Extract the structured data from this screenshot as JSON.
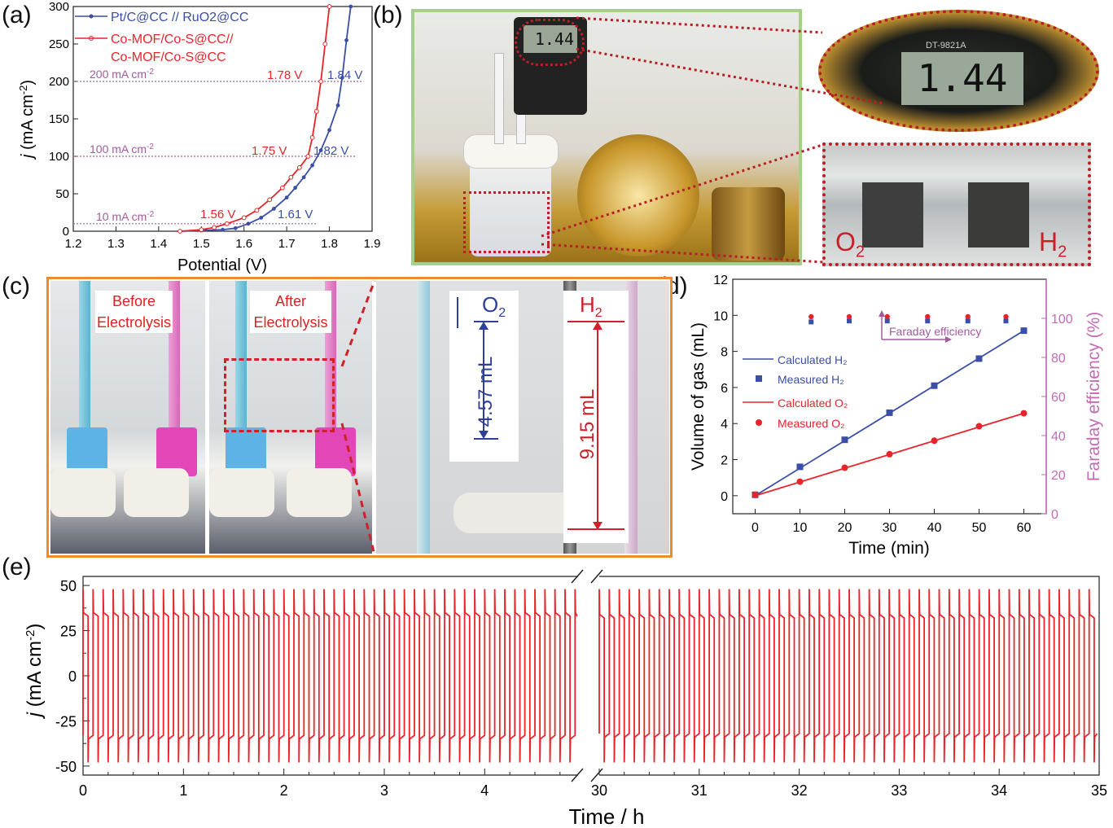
{
  "panels": {
    "a": "(a)",
    "b": "(b)",
    "c": "(c)",
    "d": "(d)",
    "e": "(e)"
  },
  "colors": {
    "red": "#e8242a",
    "blue": "#3a4fa5",
    "purple": "#a35aa0",
    "pink": "#c56ab8",
    "green_frame": "#a6cf8a",
    "orange_frame": "#ef8a2d",
    "dark_red": "#b82025"
  },
  "photo_b": {
    "meter_reading": "1.44",
    "meter_model": "DT-9821A",
    "o2_label": "O2",
    "h2_label": "H2"
  },
  "photo_c": {
    "before_label": "Before Electrolysis",
    "after_label": "After Electrolysis",
    "o2_gas": "O2",
    "h2_gas": "H2",
    "o2_volume": "4.57 mL",
    "h2_volume": "9.15 mL"
  },
  "chart_data": [
    {
      "panel": "a",
      "type": "line",
      "xlabel": "Potential (V)",
      "ylabel": "j (mA cm-2)",
      "xlim": [
        1.2,
        1.9
      ],
      "ylim": [
        0,
        300
      ],
      "xticks": [
        "1.2",
        "1.3",
        "1.4",
        "1.5",
        "1.6",
        "1.7",
        "1.8",
        "1.9"
      ],
      "yticks": [
        "0",
        "50",
        "100",
        "150",
        "200",
        "250",
        "300"
      ],
      "series": [
        {
          "name": "Pt/C@CC // RuO2@CC",
          "color": "#3a4fa5",
          "x": [
            1.45,
            1.5,
            1.55,
            1.58,
            1.61,
            1.64,
            1.67,
            1.7,
            1.72,
            1.74,
            1.76,
            1.78,
            1.8,
            1.82,
            1.83,
            1.84,
            1.85
          ],
          "y": [
            0,
            1,
            2,
            4,
            10,
            18,
            30,
            45,
            58,
            72,
            88,
            108,
            135,
            168,
            205,
            255,
            300
          ]
        },
        {
          "name": "Co-MOF/Co-S@CC// Co-MOF/Co-S@CC",
          "color": "#e8242a",
          "x": [
            1.45,
            1.5,
            1.53,
            1.56,
            1.6,
            1.63,
            1.66,
            1.69,
            1.71,
            1.73,
            1.75,
            1.76,
            1.77,
            1.78,
            1.79,
            1.8
          ],
          "y": [
            0,
            2,
            5,
            10,
            18,
            28,
            42,
            58,
            72,
            85,
            100,
            125,
            160,
            200,
            250,
            300
          ]
        }
      ],
      "annotations": [
        {
          "text": "200 mA cm-2",
          "y": 200
        },
        {
          "text": "100 mA cm-2",
          "y": 100
        },
        {
          "text": "10 mA cm-2",
          "y": 10
        },
        {
          "text": "1.78 V",
          "series": "red"
        },
        {
          "text": "1.84 V",
          "series": "blue"
        },
        {
          "text": "1.75 V",
          "series": "red"
        },
        {
          "text": "1.82 V",
          "series": "blue"
        },
        {
          "text": "1.56 V",
          "series": "red"
        },
        {
          "text": "1.61 V",
          "series": "blue"
        }
      ],
      "legend": "top-left"
    },
    {
      "panel": "d",
      "type": "line",
      "xlabel": "Time (min)",
      "ylabel": "Volume of gas (mL)",
      "y2label": "Faraday efficiency (%)",
      "xlim": [
        -5,
        65
      ],
      "ylim": [
        -1,
        12
      ],
      "y2lim": [
        0,
        120
      ],
      "xticks": [
        0,
        10,
        20,
        30,
        40,
        50,
        60
      ],
      "yticks": [
        0,
        2,
        4,
        6,
        8,
        10,
        12
      ],
      "y2ticks": [
        0,
        20,
        40,
        60,
        80,
        100
      ],
      "series": [
        {
          "name": "Calculated H₂",
          "kind": "line",
          "color": "#3a4fa5",
          "x": [
            0,
            60
          ],
          "y": [
            0,
            9.15
          ]
        },
        {
          "name": "Measured H₂",
          "kind": "square",
          "color": "#3a4fa5",
          "x": [
            0,
            10,
            20,
            30,
            40,
            50,
            60
          ],
          "y": [
            0.05,
            1.6,
            3.1,
            4.6,
            6.1,
            7.6,
            9.15
          ]
        },
        {
          "name": "Calculated O₂",
          "kind": "line",
          "color": "#e8242a",
          "x": [
            0,
            60
          ],
          "y": [
            0,
            4.57
          ]
        },
        {
          "name": "Measured O₂",
          "kind": "circle",
          "color": "#e8242a",
          "x": [
            0,
            10,
            20,
            30,
            40,
            50,
            60
          ],
          "y": [
            0.05,
            0.78,
            1.55,
            2.3,
            3.05,
            3.85,
            4.57
          ]
        },
        {
          "name": "Faraday efficiency H₂",
          "kind": "square-small",
          "color": "#3a4fa5",
          "x": [
            12.5,
            21,
            29.5,
            38.5,
            47.5,
            56
          ],
          "y2": [
            99,
            99.5,
            99.5,
            99.5,
            99.5,
            99.5
          ]
        },
        {
          "name": "Faraday efficiency O₂",
          "kind": "circle-small",
          "color": "#e8242a",
          "x": [
            12.5,
            21,
            29.5,
            38.5,
            47.5,
            56
          ],
          "y2": [
            100,
            100,
            100,
            100,
            100,
            100
          ]
        }
      ],
      "annotation": "Faraday efficiency",
      "legend": "left"
    },
    {
      "panel": "e",
      "type": "line",
      "xlabel": "Time / h",
      "ylabel": "j (mA cm-2)",
      "ylim": [
        -55,
        55
      ],
      "yticks": [
        "50",
        "25",
        "0",
        "-25",
        "-50"
      ],
      "xticks_left": [
        "0",
        "1",
        "2",
        "3",
        "4"
      ],
      "xticks_right": [
        "30",
        "31",
        "32",
        "33",
        "34",
        "35"
      ],
      "segments": [
        {
          "xrange": [
            0,
            4.9
          ],
          "cycles_per_hour": 10,
          "high": 33,
          "low": -33,
          "spike_high": 48,
          "spike_low": -48
        },
        {
          "xrange": [
            30,
            35
          ],
          "cycles_per_hour": 10,
          "high": 32,
          "low": -32,
          "spike_high": 48,
          "spike_low": -48
        }
      ],
      "axis_break": true,
      "color": "#e8242a"
    }
  ]
}
